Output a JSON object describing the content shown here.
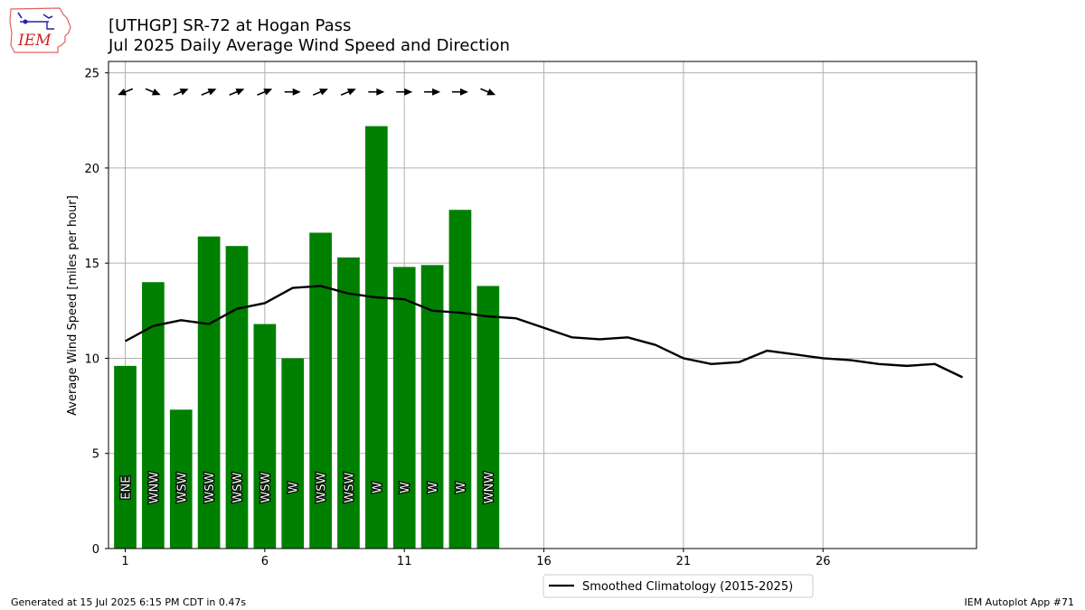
{
  "title": "[UTHGP] SR-72 at Hogan Pass",
  "subtitle": "Jul 2025 Daily Average Wind Speed and Direction",
  "logo_text": "IEM",
  "footer_left": "Generated at 15 Jul 2025 6:15 PM CDT in 0.47s",
  "footer_right": "IEM Autoplot App #71",
  "colors": {
    "bar": "#008000",
    "line": "#000000",
    "grid": "#b0b0b0"
  },
  "chart_data": {
    "type": "bar",
    "ylabel": "Average Wind Speed [miles per hour]",
    "xlabel": "",
    "ylim": [
      0,
      25.6
    ],
    "xlim": [
      0.4,
      31.5
    ],
    "xticks": [
      1,
      6,
      11,
      16,
      21,
      26
    ],
    "yticks": [
      0,
      5,
      10,
      15,
      20,
      25
    ],
    "grid": true,
    "legend_position": "below-center",
    "bars": {
      "days": [
        1,
        2,
        3,
        4,
        5,
        6,
        7,
        8,
        9,
        10,
        11,
        12,
        13,
        14
      ],
      "values": [
        9.6,
        14.0,
        7.3,
        16.4,
        15.9,
        11.8,
        10.0,
        16.6,
        15.3,
        22.2,
        14.8,
        14.9,
        17.8,
        13.8
      ],
      "directions": [
        "ENE",
        "WNW",
        "WSW",
        "WSW",
        "WSW",
        "WSW",
        "W",
        "WSW",
        "WSW",
        "W",
        "W",
        "W",
        "W",
        "WNW"
      ],
      "direction_degrees": [
        67.5,
        292.5,
        247.5,
        247.5,
        247.5,
        247.5,
        270,
        247.5,
        247.5,
        270,
        270,
        270,
        270,
        292.5
      ]
    },
    "series": [
      {
        "name": "Smoothed Climatology (2015-2025)",
        "type": "line",
        "x": [
          1,
          2,
          3,
          4,
          5,
          6,
          7,
          8,
          9,
          10,
          11,
          12,
          13,
          14,
          15,
          16,
          17,
          18,
          19,
          20,
          21,
          22,
          23,
          24,
          25,
          26,
          27,
          28,
          29,
          30,
          31
        ],
        "values": [
          10.9,
          11.7,
          12.0,
          11.8,
          12.6,
          12.9,
          13.7,
          13.8,
          13.4,
          13.2,
          13.1,
          12.5,
          12.4,
          12.2,
          12.1,
          11.6,
          11.1,
          11.0,
          11.1,
          10.7,
          10.0,
          9.7,
          9.8,
          10.4,
          10.2,
          10.0,
          9.9,
          9.7,
          9.6,
          9.7,
          9.0
        ]
      }
    ]
  }
}
